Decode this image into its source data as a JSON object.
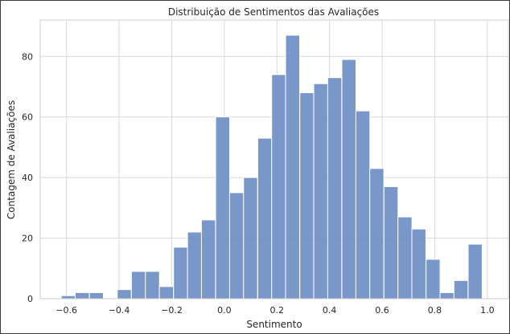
{
  "chart_data": {
    "type": "bar",
    "title": "Distribuição de Sentimentos das Avaliações",
    "xlabel": "Sentimento",
    "ylabel": "Contagem de Avaliações",
    "xlim": [
      -0.7,
      1.08
    ],
    "ylim": [
      0,
      92
    ],
    "xticks": [
      -0.6,
      -0.4,
      -0.2,
      0.0,
      0.2,
      0.4,
      0.6,
      0.8,
      1.0
    ],
    "xtick_labels": [
      "−0.6",
      "−0.4",
      "−0.2",
      "0.0",
      "0.2",
      "0.4",
      "0.6",
      "0.8",
      "1.0"
    ],
    "yticks": [
      0,
      20,
      40,
      60,
      80
    ],
    "ytick_labels": [
      "0",
      "20",
      "40",
      "60",
      "80"
    ],
    "grid": true,
    "bin_width": 0.0533,
    "bins": [
      {
        "start": -0.62,
        "value": 1
      },
      {
        "start": -0.567,
        "value": 2
      },
      {
        "start": -0.513,
        "value": 2
      },
      {
        "start": -0.46,
        "value": 0
      },
      {
        "start": -0.407,
        "value": 3
      },
      {
        "start": -0.353,
        "value": 9
      },
      {
        "start": -0.3,
        "value": 9
      },
      {
        "start": -0.247,
        "value": 4
      },
      {
        "start": -0.193,
        "value": 17
      },
      {
        "start": -0.14,
        "value": 22
      },
      {
        "start": -0.087,
        "value": 26
      },
      {
        "start": -0.033,
        "value": 60
      },
      {
        "start": 0.02,
        "value": 35
      },
      {
        "start": 0.073,
        "value": 40
      },
      {
        "start": 0.127,
        "value": 53
      },
      {
        "start": 0.18,
        "value": 74
      },
      {
        "start": 0.233,
        "value": 87
      },
      {
        "start": 0.287,
        "value": 68
      },
      {
        "start": 0.34,
        "value": 71
      },
      {
        "start": 0.393,
        "value": 73
      },
      {
        "start": 0.447,
        "value": 79
      },
      {
        "start": 0.5,
        "value": 62
      },
      {
        "start": 0.553,
        "value": 43
      },
      {
        "start": 0.607,
        "value": 37
      },
      {
        "start": 0.66,
        "value": 27
      },
      {
        "start": 0.713,
        "value": 23
      },
      {
        "start": 0.767,
        "value": 13
      },
      {
        "start": 0.82,
        "value": 2
      },
      {
        "start": 0.873,
        "value": 6
      },
      {
        "start": 0.927,
        "value": 18
      }
    ],
    "colors": {
      "bar": "#6a8cc2",
      "grid": "#d9d9d9"
    }
  }
}
